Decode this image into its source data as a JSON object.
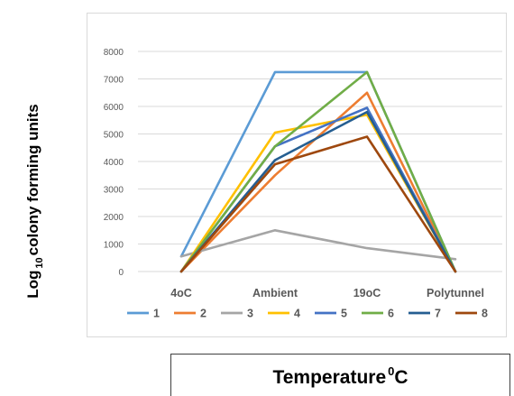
{
  "chart_data": {
    "type": "line",
    "categories": [
      "4oC",
      "Ambient",
      "19oC",
      "Polytunnel"
    ],
    "ylim": [
      0,
      8000
    ],
    "yticks": [
      0,
      1000,
      2000,
      3000,
      4000,
      5000,
      6000,
      7000,
      8000
    ],
    "grid": true,
    "legend_position": "bottom",
    "ylabel": {
      "main_start": "Log",
      "subscript": "10",
      "main_end": "colony forming units"
    },
    "xlabel": {
      "main": "Temperature",
      "superscript": "0",
      "unit": "C"
    },
    "series": [
      {
        "name": "1",
        "color": "#5b9bd5",
        "values": [
          550,
          7250,
          7250,
          0
        ]
      },
      {
        "name": "2",
        "color": "#ed7d31",
        "values": [
          0,
          3500,
          6500,
          0
        ]
      },
      {
        "name": "3",
        "color": "#a5a5a5",
        "values": [
          550,
          1500,
          850,
          450
        ]
      },
      {
        "name": "4",
        "color": "#ffc000",
        "values": [
          0,
          5050,
          5700,
          0
        ]
      },
      {
        "name": "5",
        "color": "#4472c4",
        "values": [
          0,
          4550,
          5950,
          0
        ]
      },
      {
        "name": "6",
        "color": "#70ad47",
        "values": [
          0,
          4550,
          7250,
          0
        ]
      },
      {
        "name": "7",
        "color": "#255e91",
        "values": [
          0,
          4050,
          5800,
          0
        ]
      },
      {
        "name": "8",
        "color": "#9e480e",
        "values": [
          0,
          3900,
          4900,
          0
        ]
      }
    ]
  }
}
